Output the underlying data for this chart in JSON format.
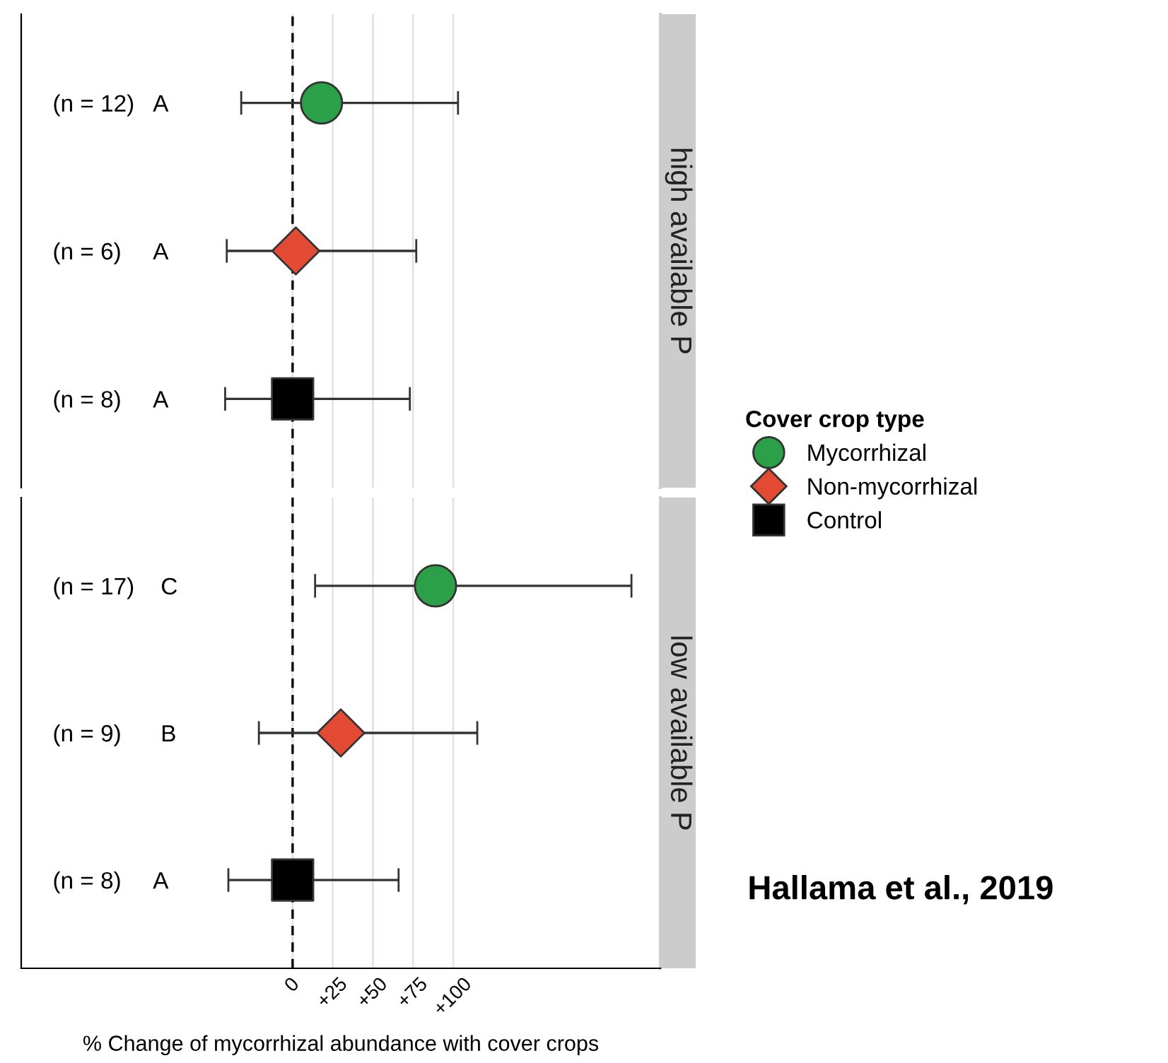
{
  "chart_data": [
    {
      "type": "scatter",
      "orientation": "horizontal",
      "title": "high available P",
      "categories": [
        "(n = 12)   A",
        "(n = 6)     A",
        "(n = 8)     A"
      ],
      "series": [
        {
          "color": "#2ca048",
          "marker": "circle",
          "values": [
            18,
            null,
            null
          ],
          "errors": [
            [
              -32,
              103
            ],
            null,
            null
          ]
        },
        {
          "color": "#e34a33",
          "marker": "diamond",
          "values": [
            null,
            2,
            null
          ],
          "errors": [
            null,
            [
              -41,
              77
            ],
            null
          ]
        },
        {
          "color": "#000000",
          "marker": "square",
          "values": [
            null,
            null,
            0
          ],
          "errors": [
            null,
            null,
            [
              -42,
              73
            ]
          ]
        }
      ],
      "xlim": [
        -169,
        229
      ],
      "xticks": [
        {
          "value": 0,
          "label": null
        },
        {
          "value": 25,
          "label": null
        },
        {
          "value": 50,
          "label": null
        },
        {
          "value": 75,
          "label": null
        },
        {
          "value": 100,
          "label": null
        }
      ],
      "ref_lines": [
        {
          "axis": "x",
          "value": 0,
          "line_style": "dashed",
          "color": "#000000"
        }
      ],
      "grid": "x",
      "tick_labels": "y"
    },
    {
      "type": "scatter",
      "orientation": "horizontal",
      "title": "low available P",
      "categories": [
        "(n = 17)    C",
        "(n = 9)      B",
        "(n = 8)     A"
      ],
      "series": [
        {
          "name": "Mycorrhizal",
          "color": "#2ca048",
          "marker": "circle",
          "values": [
            89,
            null,
            null
          ],
          "errors": [
            [
              14,
              211
            ],
            null,
            null
          ]
        },
        {
          "name": "Non-mycorrhizal",
          "color": "#e34a33",
          "marker": "diamond",
          "values": [
            null,
            30,
            null
          ],
          "errors": [
            null,
            [
              -21,
              115
            ],
            null
          ]
        },
        {
          "name": "Control",
          "color": "#000000",
          "marker": "square",
          "values": [
            null,
            null,
            0
          ],
          "errors": [
            null,
            null,
            [
              -40,
              66
            ]
          ]
        }
      ],
      "xlim": [
        -169,
        229
      ],
      "xticks": [
        0,
        {
          "value": 25,
          "label": "+25"
        },
        {
          "value": 50,
          "label": "+50"
        },
        {
          "value": 75,
          "label": "+75"
        },
        {
          "value": 100,
          "label": "+100"
        }
      ],
      "ref_lines": [
        {
          "axis": "x",
          "value": 0,
          "line_style": "dashed",
          "color": "#000000"
        }
      ],
      "grid": "x",
      "xlabel": "% Change of mycorrhizal abundance with cover crops",
      "legend": "right",
      "legend_title": "Cover crop type",
      "annotations": [
        "Hallama et al., 2019"
      ]
    }
  ]
}
